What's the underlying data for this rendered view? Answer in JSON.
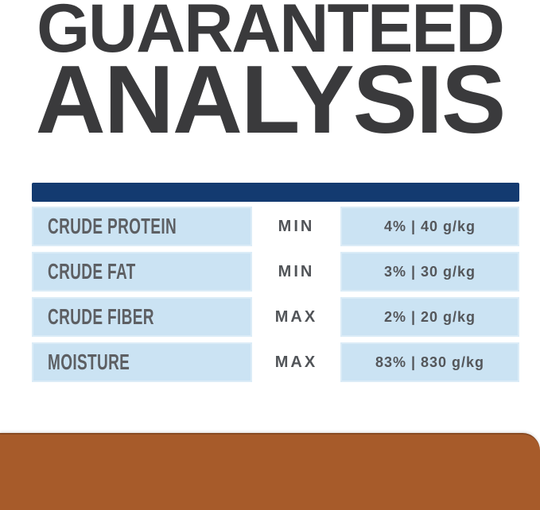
{
  "title": {
    "line1": "GUARANTEED",
    "line2": "ANALYSIS"
  },
  "table": {
    "rows": [
      {
        "label": "CRUDE PROTEIN",
        "constraint": "MIN",
        "value": "4% | 40 g/kg"
      },
      {
        "label": "CRUDE FAT",
        "constraint": "MIN",
        "value": "3% | 30 g/kg"
      },
      {
        "label": "CRUDE FIBER",
        "constraint": "MAX",
        "value": "2% | 20 g/kg"
      },
      {
        "label": "MOISTURE",
        "constraint": "MAX",
        "value": "83% | 830 g/kg"
      }
    ]
  },
  "colors": {
    "title_text": "#3a3a3c",
    "header_bar": "#133a70",
    "row_fill": "#cbe3f3",
    "label_text": "#5d5f63",
    "constraint_text": "#515458",
    "value_text": "#54565a",
    "footer_bar": "#a75b2a"
  }
}
